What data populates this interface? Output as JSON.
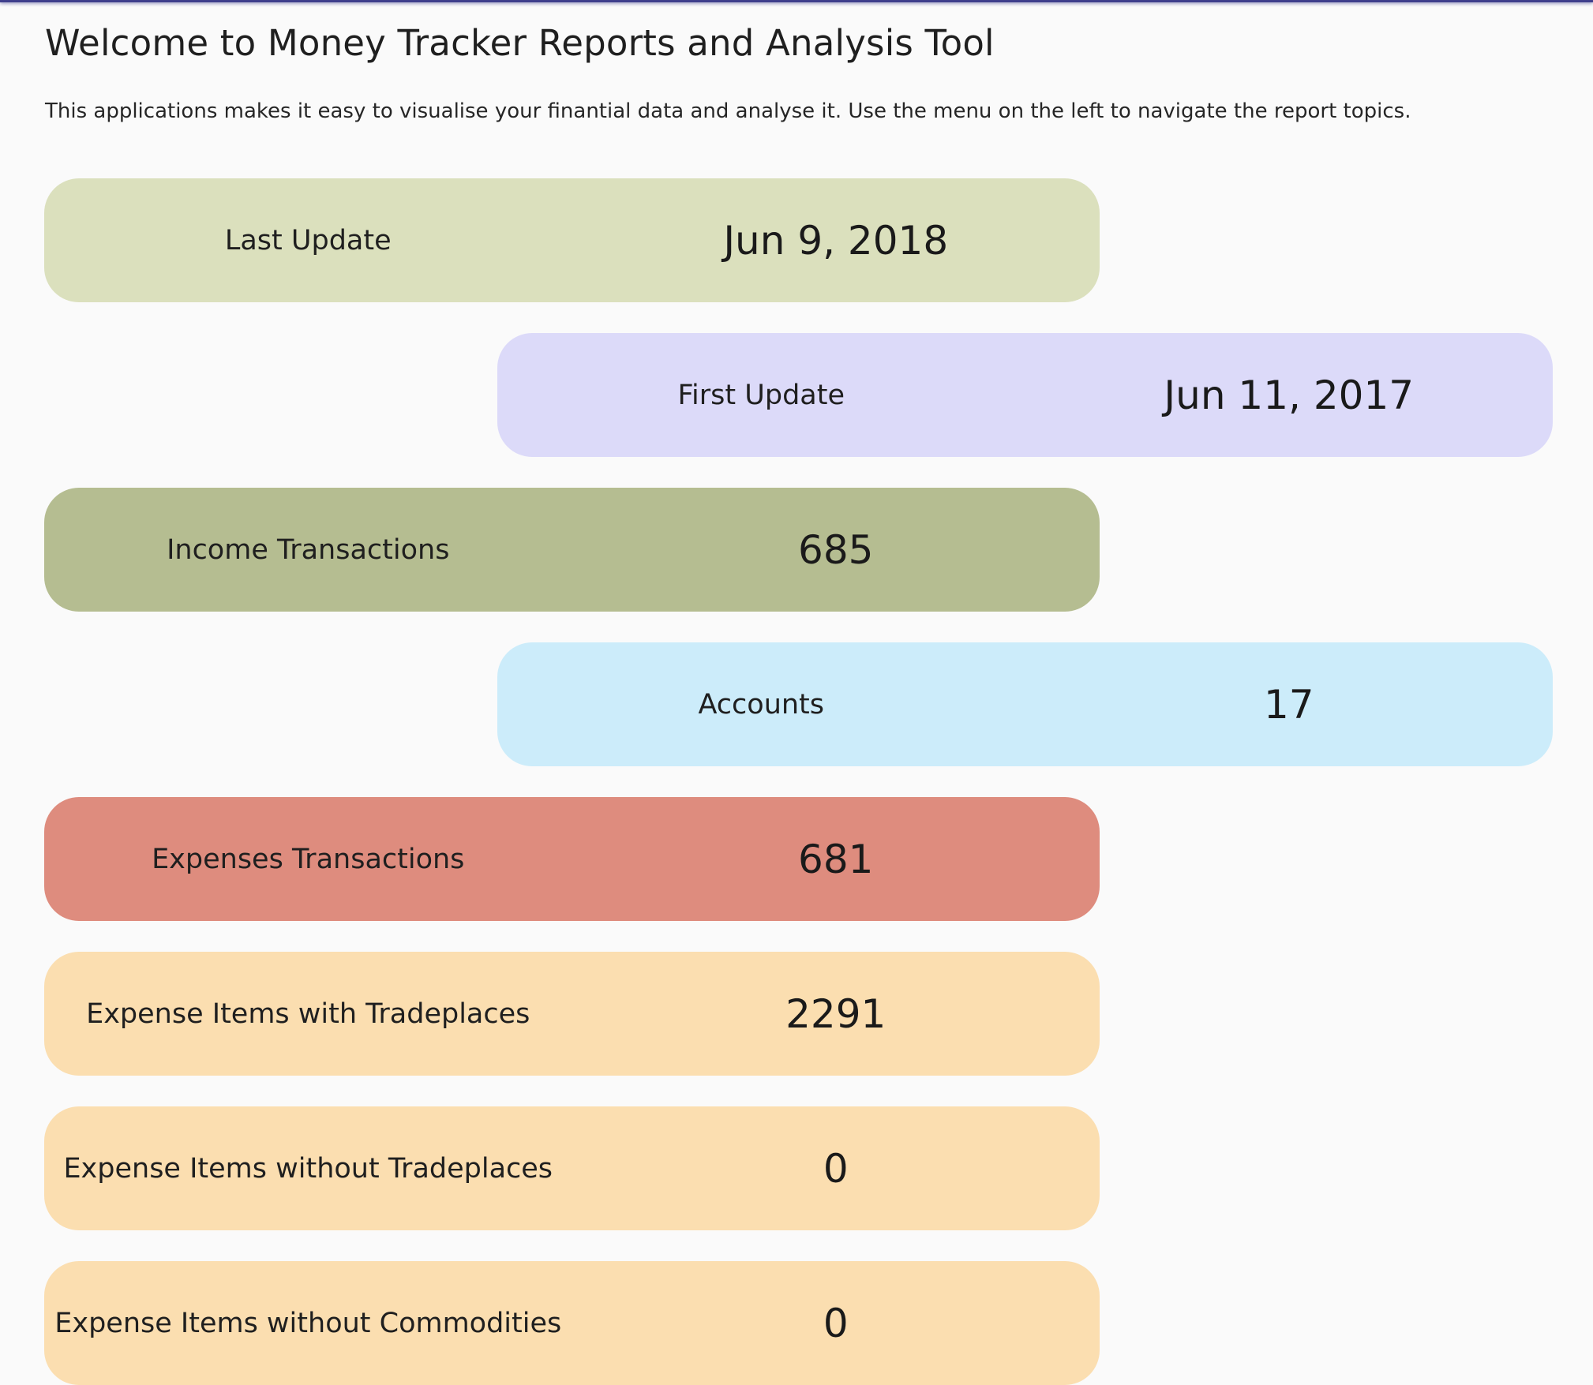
{
  "header": {
    "title": "Welcome to Money Tracker Reports and Analysis Tool",
    "intro": "This applications makes it easy to visualise your finantial data and analyse it. Use the menu on the left to navigate the report topics."
  },
  "stats": [
    {
      "label": "Last Update",
      "value": "Jun 9, 2018",
      "color": "#dbe0bd"
    },
    {
      "label": "First Update",
      "value": "Jun 11, 2017",
      "color": "#dcdaf9"
    },
    {
      "label": "Income Transactions",
      "value": "685",
      "color": "#b5bd91"
    },
    {
      "label": "Accounts",
      "value": "17",
      "color": "#ccecfa"
    },
    {
      "label": "Expenses Transactions",
      "value": "681",
      "color": "#de8c7e"
    },
    {
      "label": "Expense Items with Tradeplaces",
      "value": "2291",
      "color": "#fbdeb0"
    },
    {
      "label": "Expense Items without Tradeplaces",
      "value": "0",
      "color": "#fbdeb0"
    },
    {
      "label": "Expense Items without Commodities",
      "value": "0",
      "color": "#fbdeb0"
    }
  ]
}
